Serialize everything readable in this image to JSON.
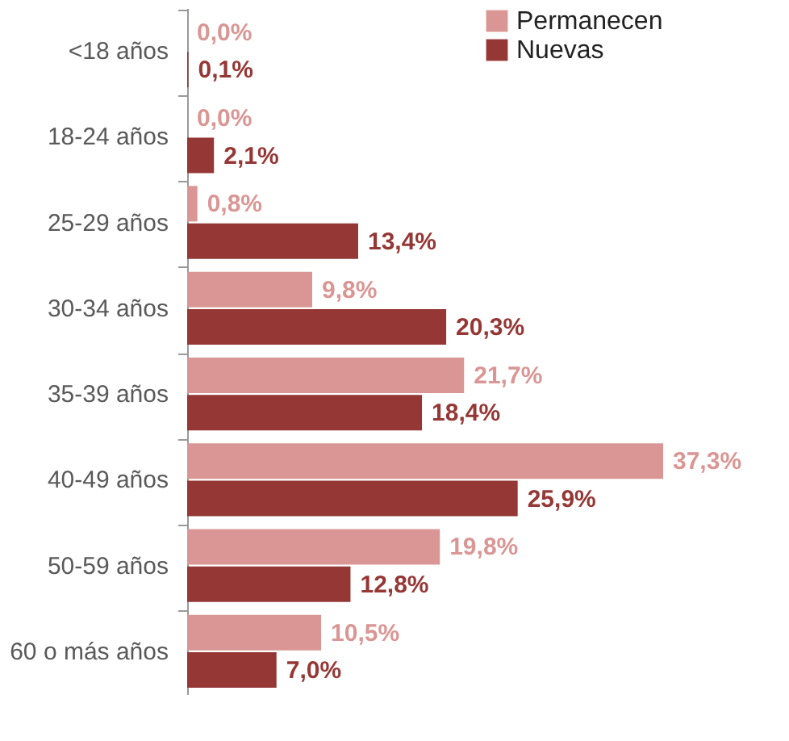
{
  "chart_data": {
    "type": "bar",
    "orientation": "horizontal",
    "categories": [
      "<18 años",
      "18-24 años",
      "25-29 años",
      "30-34 años",
      "35-39 años",
      "40-49 años",
      "50-59 años",
      "60 o más años"
    ],
    "series": [
      {
        "name": "Permanecen",
        "color": "#d99694",
        "values": [
          0.0,
          0.0,
          0.8,
          9.8,
          21.7,
          37.3,
          19.8,
          10.5
        ],
        "value_labels": [
          "0,0%",
          "0,0%",
          "0,8%",
          "9,8%",
          "21,7%",
          "37,3%",
          "19,8%",
          "10,5%"
        ]
      },
      {
        "name": "Nuevas",
        "color": "#953735",
        "values": [
          0.1,
          2.1,
          13.4,
          20.3,
          18.4,
          25.9,
          12.8,
          7.0
        ],
        "value_labels": [
          "0,1%",
          "2,1%",
          "13,4%",
          "20,3%",
          "18,4%",
          "25,9%",
          "12,8%",
          "7,0%"
        ]
      }
    ],
    "legend": "top right",
    "grid": false
  }
}
